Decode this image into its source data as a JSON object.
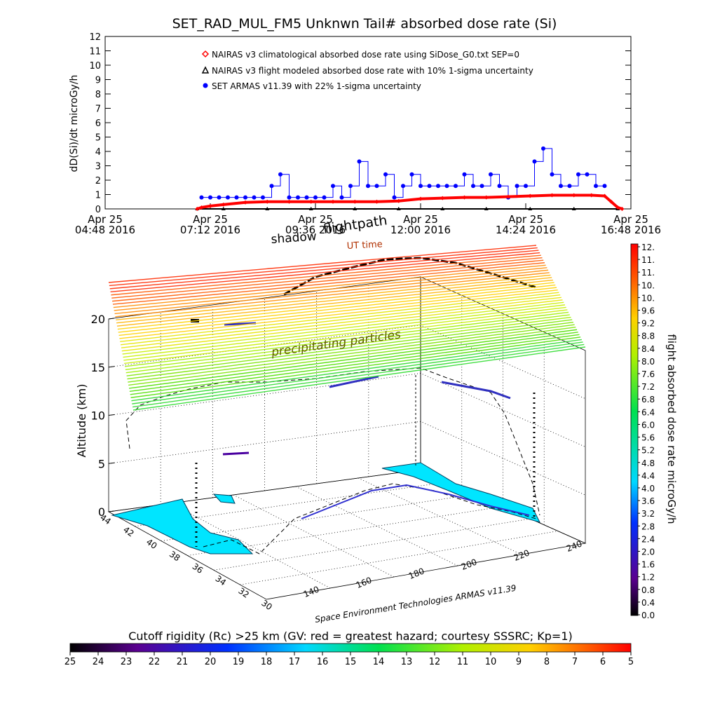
{
  "chart_data": [
    {
      "type": "scatter",
      "title": "SET_RAD_MUL_FM5 Unknwn Tail#  absorbed dose rate (Si)",
      "ylabel": "dD(Si)/dt microGy/h",
      "ylim": [
        0,
        12
      ],
      "y_ticks": [
        "0",
        "1",
        "2",
        "3",
        "4",
        "5",
        "6",
        "7",
        "8",
        "9",
        "10",
        "11",
        "12"
      ],
      "x_range_hours": [
        4.8,
        16.8
      ],
      "x_ticks": [
        {
          "hour": 4.8,
          "line1": "Apr 25",
          "line2": "04:48 2016"
        },
        {
          "hour": 7.2,
          "line1": "Apr 25",
          "line2": "07:12 2016"
        },
        {
          "hour": 9.6,
          "line1": "Apr 25",
          "line2": "09:36 2016"
        },
        {
          "hour": 12.0,
          "line1": "Apr 25",
          "line2": "12:00 2016"
        },
        {
          "hour": 14.4,
          "line1": "Apr 25",
          "line2": "14:24 2016"
        },
        {
          "hour": 16.8,
          "line1": "Apr 25",
          "line2": "16:48 2016"
        }
      ],
      "legend_position": "top-left",
      "series": [
        {
          "name": "NAIRAS v3 climatological absorbed dose rate using SiDose_G0.txt SEP=0",
          "marker": "diamond",
          "color": "#ff0000",
          "x": [
            6.9,
            7.0,
            7.2,
            7.5,
            8.0,
            8.5,
            9.0,
            9.5,
            10.0,
            10.5,
            11.0,
            11.5,
            12.0,
            12.5,
            13.0,
            13.5,
            14.0,
            14.5,
            15.0,
            15.5,
            15.9,
            16.2,
            16.35,
            16.5,
            16.6
          ],
          "y": [
            0.0,
            0.1,
            0.2,
            0.3,
            0.45,
            0.5,
            0.5,
            0.5,
            0.5,
            0.5,
            0.5,
            0.55,
            0.7,
            0.75,
            0.8,
            0.8,
            0.85,
            0.9,
            0.95,
            0.95,
            0.95,
            0.9,
            0.5,
            0.1,
            0.0
          ]
        },
        {
          "name": "NAIRAS v3 flight modeled absorbed dose rate with 10% 1-sigma uncertainty",
          "marker": "triangle",
          "color": "#000000",
          "x": [
            6.9,
            7.5,
            8.5,
            9.5,
            10.5,
            11.5,
            12.5,
            13.5,
            14.5,
            15.5,
            16.5
          ],
          "y": [
            0.0,
            0.0,
            0.0,
            0.0,
            0.0,
            0.0,
            0.0,
            0.0,
            0.0,
            0.0,
            0.0
          ]
        },
        {
          "name": "SET ARMAS v11.39 with 22% 1-sigma uncertainty",
          "marker": "circle",
          "color": "#0000ff",
          "x": [
            7.0,
            7.2,
            7.4,
            7.6,
            7.8,
            8.0,
            8.2,
            8.4,
            8.6,
            8.8,
            9.0,
            9.2,
            9.4,
            9.6,
            9.8,
            10.0,
            10.2,
            10.4,
            10.6,
            10.8,
            11.0,
            11.2,
            11.4,
            11.6,
            11.8,
            12.0,
            12.2,
            12.4,
            12.6,
            12.8,
            13.0,
            13.2,
            13.4,
            13.6,
            13.8,
            14.0,
            14.2,
            14.4,
            14.6,
            14.8,
            15.0,
            15.2,
            15.4,
            15.6,
            15.8,
            16.0,
            16.2
          ],
          "y": [
            0.8,
            0.8,
            0.8,
            0.8,
            0.8,
            0.8,
            0.8,
            0.8,
            1.6,
            2.4,
            0.8,
            0.8,
            0.8,
            0.8,
            0.8,
            1.6,
            0.8,
            1.6,
            3.3,
            1.6,
            1.6,
            2.4,
            0.8,
            1.6,
            2.4,
            1.6,
            1.6,
            1.6,
            1.6,
            1.6,
            2.4,
            1.6,
            1.6,
            2.4,
            1.6,
            0.8,
            1.6,
            1.6,
            3.3,
            4.2,
            2.4,
            1.6,
            1.6,
            2.4,
            2.4,
            1.6,
            1.6
          ]
        }
      ]
    },
    {
      "type": "3d-flightpath",
      "labels": {
        "shadow": "shadow",
        "flightpath": "flightpath",
        "ut_time": "UT time",
        "precip": "precipitating particles",
        "credit": "Space Environment Technologies ARMAS v11.39"
      },
      "zlabel": "Altitude (km)",
      "z_ticks": [
        "0",
        "5",
        "10",
        "15",
        "20"
      ],
      "lat_ticks": [
        "44",
        "42",
        "40",
        "38",
        "36",
        "34",
        "32",
        "30"
      ],
      "lon_ticks": [
        "140",
        "160",
        "180",
        "200",
        "220",
        "240"
      ],
      "colorbar_right": {
        "label": "flight absorbed dose rate microGy/h",
        "ticks": [
          "0.0",
          "0.4",
          "0.8",
          "1.2",
          "1.6",
          "2.0",
          "2.4",
          "2.8",
          "3.2",
          "3.6",
          "4.0",
          "4.4",
          "4.8",
          "5.2",
          "5.6",
          "6.0",
          "6.4",
          "6.8",
          "7.2",
          "7.6",
          "8.0",
          "8.4",
          "8.8",
          "9.2",
          "9.6",
          "10.",
          "10.",
          "11.",
          "11.",
          "12."
        ]
      },
      "colorbar_bottom": {
        "title": "Cutoff rigidity (Rc) >25 km (GV: red = greatest hazard; courtesy SSSRC; Kp=1)",
        "ticks": [
          "25",
          "24",
          "23",
          "22",
          "21",
          "20",
          "19",
          "18",
          "17",
          "16",
          "15",
          "14",
          "13",
          "12",
          "11",
          "10",
          "9",
          "8",
          "7",
          "6",
          "5"
        ]
      }
    }
  ]
}
